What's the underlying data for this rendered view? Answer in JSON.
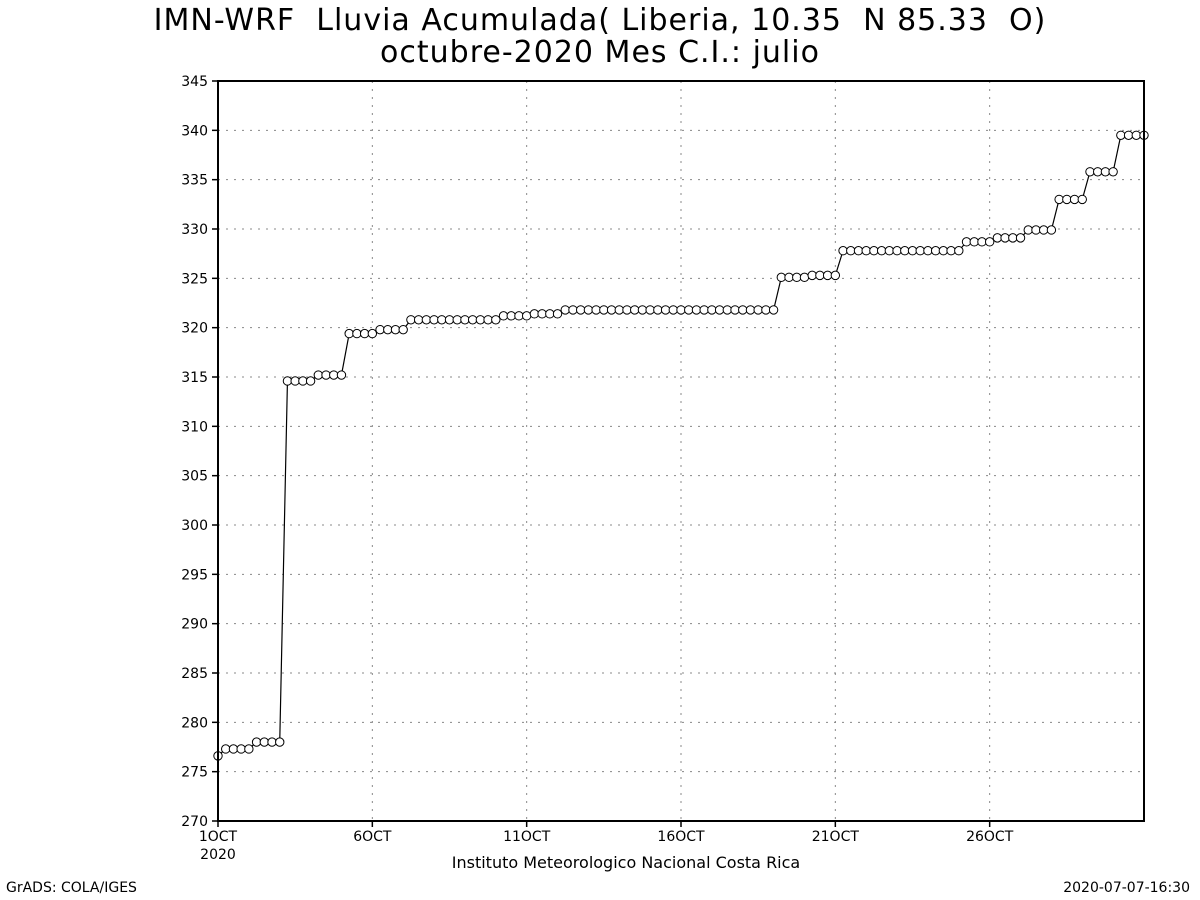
{
  "header": {
    "title_line1": "IMN-WRF  Lluvia Acumulada( Liberia, 10.35  N 85.33  O)",
    "title_line2": "octubre-2020 Mes C.I.: julio"
  },
  "footer": {
    "credit": "GrADS: COLA/IGES",
    "timestamp": "2020-07-07-16:30"
  },
  "chart_data": {
    "type": "line",
    "title": "IMN-WRF  Lluvia Acumulada( Liberia, 10.35  N 85.33  O)",
    "subtitle": "octubre-2020 Mes C.I.: julio",
    "xlabel": "Instituto Meteorologico Nacional Costa Rica",
    "ylabel": "",
    "xlim": [
      0,
      120
    ],
    "ylim": [
      270,
      345
    ],
    "x_ticks": [
      {
        "x": 0,
        "label": "1OCT",
        "sub": "2020"
      },
      {
        "x": 20,
        "label": "6OCT",
        "sub": ""
      },
      {
        "x": 40,
        "label": "11OCT",
        "sub": ""
      },
      {
        "x": 60,
        "label": "16OCT",
        "sub": ""
      },
      {
        "x": 80,
        "label": "21OCT",
        "sub": ""
      },
      {
        "x": 100,
        "label": "26OCT",
        "sub": ""
      }
    ],
    "y_ticks": [
      270,
      275,
      280,
      285,
      290,
      295,
      300,
      305,
      310,
      315,
      320,
      325,
      330,
      335,
      340,
      345
    ],
    "grid": true,
    "marker": "open-circle",
    "series": [
      {
        "values": [
          276.6,
          277.3,
          277.3,
          277.3,
          277.3,
          278.0,
          278.0,
          278.0,
          278.0,
          314.6,
          314.6,
          314.6,
          314.6,
          315.2,
          315.2,
          315.2,
          315.2,
          319.4,
          319.4,
          319.4,
          319.4,
          319.8,
          319.8,
          319.8,
          319.8,
          320.8,
          320.8,
          320.8,
          320.8,
          320.8,
          320.8,
          320.8,
          320.8,
          320.8,
          320.8,
          320.8,
          320.8,
          321.2,
          321.2,
          321.2,
          321.2,
          321.4,
          321.4,
          321.4,
          321.4,
          321.8,
          321.8,
          321.8,
          321.8,
          321.8,
          321.8,
          321.8,
          321.8,
          321.8,
          321.8,
          321.8,
          321.8,
          321.8,
          321.8,
          321.8,
          321.8,
          321.8,
          321.8,
          321.8,
          321.8,
          321.8,
          321.8,
          321.8,
          321.8,
          321.8,
          321.8,
          321.8,
          321.8,
          325.1,
          325.1,
          325.1,
          325.1,
          325.3,
          325.3,
          325.3,
          325.3,
          327.8,
          327.8,
          327.8,
          327.8,
          327.8,
          327.8,
          327.8,
          327.8,
          327.8,
          327.8,
          327.8,
          327.8,
          327.8,
          327.8,
          327.8,
          327.8,
          328.7,
          328.7,
          328.7,
          328.7,
          329.1,
          329.1,
          329.1,
          329.1,
          329.9,
          329.9,
          329.9,
          329.9,
          333.0,
          333.0,
          333.0,
          333.0,
          335.8,
          335.8,
          335.8,
          335.8,
          339.5,
          339.5,
          339.5,
          339.5
        ]
      }
    ]
  }
}
